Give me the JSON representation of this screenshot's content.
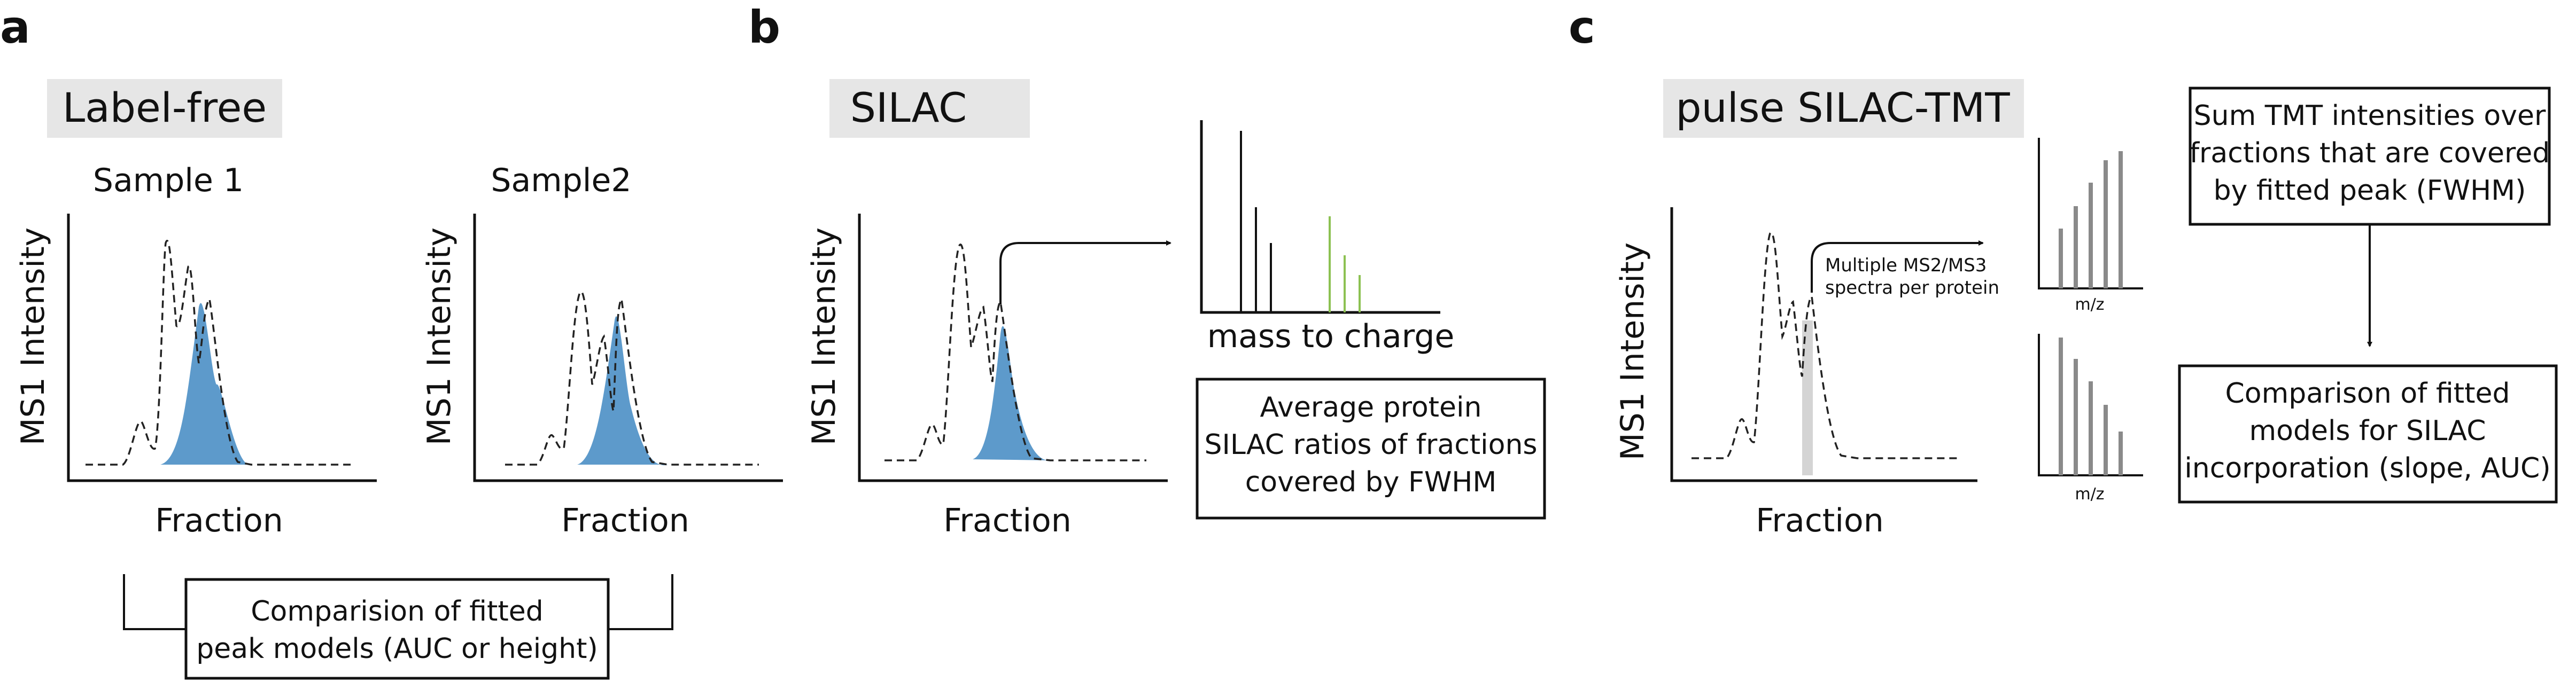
{
  "colors": {
    "peak_fill": "#5d9acb",
    "banner_bg": "#e6e6e6",
    "heavy_isotope": "#8cc152",
    "tmt_bars": "#8a8a8a",
    "highlight": "#d4d4d4"
  },
  "panel_a": {
    "letter": "a",
    "banner": "Label-free",
    "sample1": "Sample 1",
    "sample2": "Sample2",
    "ylabel": "MS1 Intensity",
    "xlabel": "Fraction",
    "box_line1": "Comparision of fitted",
    "box_line2": "peak models (AUC or height)"
  },
  "panel_b": {
    "letter": "b",
    "banner": "SILAC",
    "ylabel": "MS1 Intensity",
    "xlabel": "Fraction",
    "spectrum_xlabel": "mass to charge",
    "box_line1": "Average protein",
    "box_line2": "SILAC ratios of fractions",
    "box_line3": "covered by FWHM"
  },
  "panel_c": {
    "letter": "c",
    "banner": "pulse SILAC-TMT",
    "ylabel": "MS1 Intensity",
    "xlabel": "Fraction",
    "annotation_line1": "Multiple MS2/MS3",
    "annotation_line2": "spectra per protein",
    "mz_label_top": "m/z",
    "mz_label_bottom": "m/z",
    "box1_line1": "Sum TMT intensities over",
    "box1_line2": "fractions that are covered",
    "box1_line3": "by fitted peak (FWHM)",
    "box2_line1": "Comparison of fitted",
    "box2_line2": "models for SILAC",
    "box2_line3": "incorporation (slope, AUC)"
  }
}
